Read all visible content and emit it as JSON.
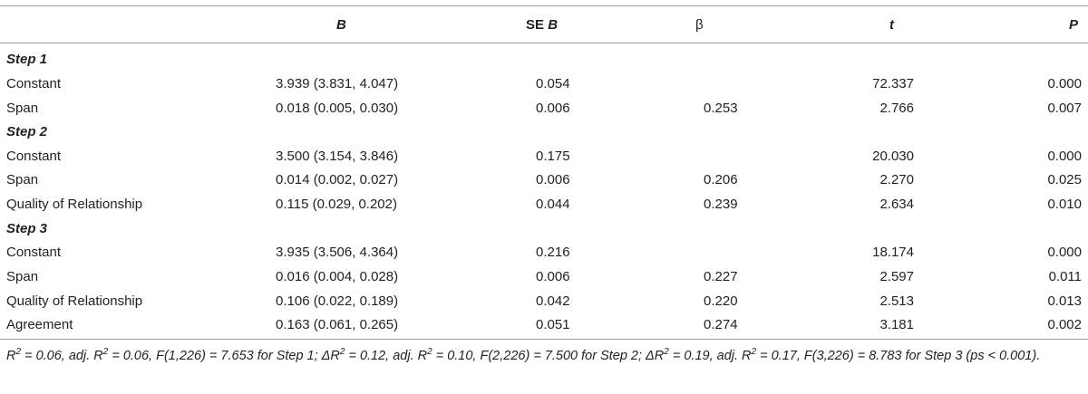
{
  "header": {
    "b": "B",
    "se_prefix": "SE ",
    "se_b": "B",
    "beta": "β",
    "t": "t",
    "p": "P"
  },
  "steps": [
    {
      "label": "Step 1",
      "rows": [
        {
          "label": "Constant",
          "b": "3.939 (3.831, 4.047)",
          "se": "0.054",
          "beta": "",
          "t": "72.337",
          "p": "0.000"
        },
        {
          "label": "Span",
          "b": "0.018 (0.005, 0.030)",
          "se": "0.006",
          "beta": "0.253",
          "t": "2.766",
          "p": "0.007"
        }
      ]
    },
    {
      "label": "Step 2",
      "rows": [
        {
          "label": "Constant",
          "b": "3.500 (3.154, 3.846)",
          "se": "0.175",
          "beta": "",
          "t": "20.030",
          "p": "0.000"
        },
        {
          "label": "Span",
          "b": "0.014 (0.002, 0.027)",
          "se": "0.006",
          "beta": "0.206",
          "t": "2.270",
          "p": "0.025"
        },
        {
          "label": "Quality of Relationship",
          "b": "0.115 (0.029, 0.202)",
          "se": "0.044",
          "beta": "0.239",
          "t": "2.634",
          "p": "0.010"
        }
      ]
    },
    {
      "label": "Step 3",
      "rows": [
        {
          "label": "Constant",
          "b": "3.935 (3.506, 4.364)",
          "se": "0.216",
          "beta": "",
          "t": "18.174",
          "p": "0.000"
        },
        {
          "label": "Span",
          "b": "0.016 (0.004, 0.028)",
          "se": "0.006",
          "beta": "0.227",
          "t": "2.597",
          "p": "0.011"
        },
        {
          "label": "Quality of Relationship",
          "b": "0.106 (0.022, 0.189)",
          "se": "0.042",
          "beta": "0.220",
          "t": "2.513",
          "p": "0.013"
        },
        {
          "label": "Agreement",
          "b": "0.163 (0.061, 0.265)",
          "se": "0.051",
          "beta": "0.274",
          "t": "3.181",
          "p": "0.002"
        }
      ]
    }
  ],
  "footnote": {
    "p1": "R",
    "s1": "2",
    "p2": " = 0.06, adj. R",
    "s2": "2",
    "p3": " = 0.06, F(1,226) = 7.653 for Step 1; ΔR",
    "s3": "2",
    "p4": " = 0.12, adj. R",
    "s4": "2",
    "p5": " = 0.10, F(2,226) = 7.500 for Step 2; ΔR",
    "s5": "2",
    "p6": " = 0.19, adj. R",
    "s6": "2",
    "p7": " = 0.17, F(3,226) = 8.783 for Step 3 (ps < 0.001)."
  }
}
